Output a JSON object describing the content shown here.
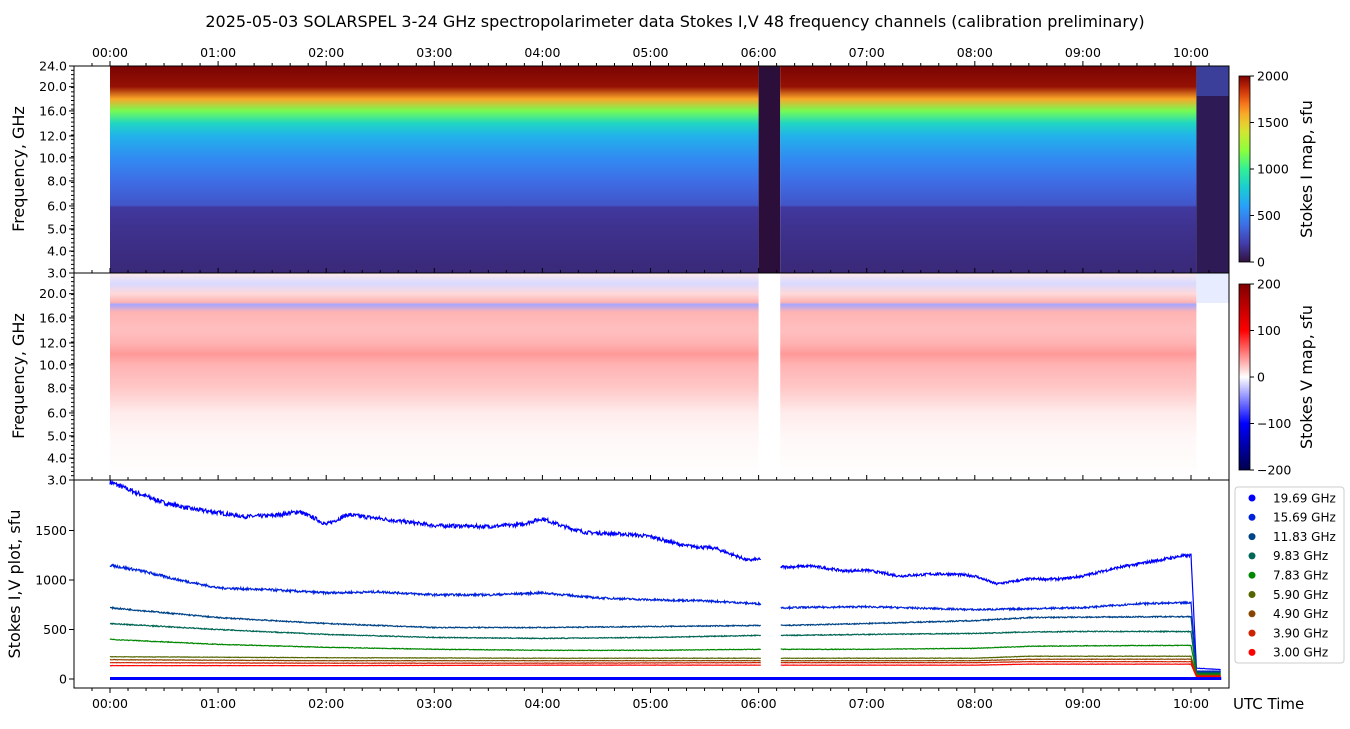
{
  "title": "2025-05-03  SOLARSPEL  3-24 GHz spectropolarimeter data   Stokes I,V   48 frequency channels   (calibration preliminary)",
  "chart_data": [
    {
      "type": "heatmap",
      "name": "Stokes I map",
      "ylabel": "Frequency, GHz",
      "yticks": [
        "24.0",
        "20.0",
        "16.0",
        "12.0",
        "10.0",
        "8.0",
        "6.0",
        "5.0",
        "4.0",
        "3.0"
      ],
      "xticks": [
        "00:00",
        "01:00",
        "02:00",
        "03:00",
        "04:00",
        "05:00",
        "06:00",
        "07:00",
        "08:00",
        "09:00",
        "10:00"
      ],
      "xlim_hours": [
        -0.33,
        10.28
      ],
      "data_start_hours": 0.0,
      "gap_hours": [
        6.0,
        6.2
      ],
      "data_end_hours": 10.05,
      "colorbar": {
        "label": "Stokes I map, sfu",
        "range": [
          0,
          2000
        ],
        "ticks": [
          "0",
          "500",
          "1000",
          "1500",
          "2000"
        ]
      },
      "profile_freq_ghz": [
        24,
        20,
        18,
        16,
        14,
        12,
        10,
        8,
        6.05,
        5.95,
        5,
        4,
        3
      ],
      "profile_sfu": [
        2050,
        1950,
        1600,
        1150,
        850,
        680,
        520,
        400,
        300,
        180,
        150,
        130,
        110
      ]
    },
    {
      "type": "heatmap",
      "name": "Stokes V map",
      "ylabel": "Frequency, GHz",
      "yticks": [
        "20.0",
        "16.0",
        "12.0",
        "10.0",
        "8.0",
        "6.0",
        "5.0",
        "4.0",
        "3.0"
      ],
      "colorbar": {
        "label": "Stokes V map, sfu",
        "range": [
          -200,
          200
        ],
        "ticks": [
          "200",
          "100",
          "0",
          "−100",
          "−200"
        ]
      },
      "profile_freq_ghz": [
        24,
        22,
        20,
        18.6,
        18.2,
        17,
        14,
        12,
        11,
        10,
        8,
        6,
        5,
        3
      ],
      "profile_sfu": [
        8,
        -15,
        15,
        30,
        -35,
        30,
        25,
        30,
        40,
        30,
        22,
        8,
        3,
        0
      ]
    },
    {
      "type": "line",
      "name": "Stokes I,V plot",
      "ylabel": "Stokes I,V plot, sfu",
      "xlabel": "UTC Time",
      "ylim": [
        -90,
        2010
      ],
      "yticks": [
        0,
        500,
        1000,
        1500
      ],
      "legend_position": "right",
      "series": [
        {
          "name": "19.69 GHz",
          "color": "#0000ff",
          "x": [
            0,
            0.25,
            0.5,
            0.75,
            1,
            1.25,
            1.5,
            1.75,
            1.9,
            2.0,
            2.2,
            2.5,
            3,
            3.5,
            3.8,
            4.0,
            4.2,
            4.4,
            4.8,
            5,
            5.3,
            5.6,
            5.9,
            6.0,
            6.2,
            6.5,
            6.8,
            7.0,
            7.3,
            7.6,
            7.8,
            8.0,
            8.2,
            8.5,
            8.8,
            9.0,
            9.3,
            9.6,
            9.9,
            10.0,
            10.05,
            10.28
          ],
          "y": [
            1990,
            1880,
            1780,
            1720,
            1680,
            1640,
            1650,
            1690,
            1620,
            1560,
            1660,
            1620,
            1550,
            1540,
            1560,
            1620,
            1540,
            1480,
            1460,
            1440,
            1350,
            1320,
            1200,
            1210,
            1130,
            1140,
            1090,
            1100,
            1040,
            1060,
            1060,
            1040,
            960,
            1010,
            1010,
            1040,
            1120,
            1180,
            1240,
            1250,
            110,
            95
          ]
        },
        {
          "name": "15.69 GHz",
          "color": "#0022dd",
          "x": [
            0,
            0.3,
            0.6,
            1,
            1.5,
            2,
            2.5,
            3,
            3.5,
            4,
            4.5,
            5,
            5.5,
            6,
            6.2,
            7,
            8,
            8.5,
            9,
            9.5,
            10,
            10.05,
            10.28
          ],
          "y": [
            1150,
            1090,
            1010,
            920,
            900,
            870,
            880,
            850,
            850,
            870,
            820,
            800,
            790,
            760,
            720,
            730,
            700,
            710,
            720,
            760,
            770,
            80,
            80
          ]
        },
        {
          "name": "11.83 GHz",
          "color": "#004488",
          "x": [
            0,
            1,
            2,
            3,
            4,
            5,
            6,
            6.2,
            7,
            8,
            8.5,
            9,
            10,
            10.05,
            10.28
          ],
          "y": [
            720,
            620,
            560,
            520,
            520,
            530,
            540,
            540,
            560,
            590,
            620,
            625,
            630,
            70,
            70
          ]
        },
        {
          "name": "9.83 GHz",
          "color": "#006655",
          "x": [
            0,
            1,
            2,
            3,
            4,
            5,
            6,
            6.2,
            7,
            8,
            8.5,
            9,
            10,
            10.05,
            10.28
          ],
          "y": [
            560,
            500,
            450,
            420,
            410,
            420,
            440,
            440,
            450,
            460,
            475,
            480,
            480,
            60,
            60
          ]
        },
        {
          "name": "7.83 GHz",
          "color": "#008800",
          "x": [
            0,
            1,
            2,
            3,
            4,
            5,
            6,
            6.2,
            7,
            8,
            8.5,
            9,
            10,
            10.05,
            10.28
          ],
          "y": [
            400,
            350,
            320,
            300,
            290,
            290,
            300,
            300,
            300,
            310,
            330,
            335,
            340,
            50,
            50
          ]
        },
        {
          "name": "5.90 GHz",
          "color": "#556600",
          "x": [
            0,
            2,
            4,
            6,
            6.2,
            8,
            8.5,
            10,
            10.05,
            10.28
          ],
          "y": [
            225,
            215,
            210,
            210,
            210,
            210,
            230,
            230,
            40,
            40
          ]
        },
        {
          "name": "4.90 GHz",
          "color": "#884400",
          "x": [
            0,
            2,
            4,
            6,
            6.2,
            8,
            8.5,
            10,
            10.05,
            10.28
          ],
          "y": [
            195,
            185,
            185,
            185,
            185,
            185,
            200,
            200,
            35,
            35
          ]
        },
        {
          "name": "3.90 GHz",
          "color": "#cc2200",
          "x": [
            0,
            2,
            4,
            6,
            6.2,
            8,
            8.5,
            10,
            10.05,
            10.28
          ],
          "y": [
            165,
            160,
            160,
            165,
            165,
            165,
            175,
            175,
            30,
            30
          ]
        },
        {
          "name": "3.00 GHz",
          "color": "#ff0000",
          "x": [
            0,
            2,
            4,
            6,
            6.2,
            8,
            8.5,
            10,
            10.05,
            10.28
          ],
          "y": [
            135,
            135,
            140,
            140,
            140,
            140,
            150,
            150,
            25,
            25
          ]
        }
      ]
    }
  ]
}
